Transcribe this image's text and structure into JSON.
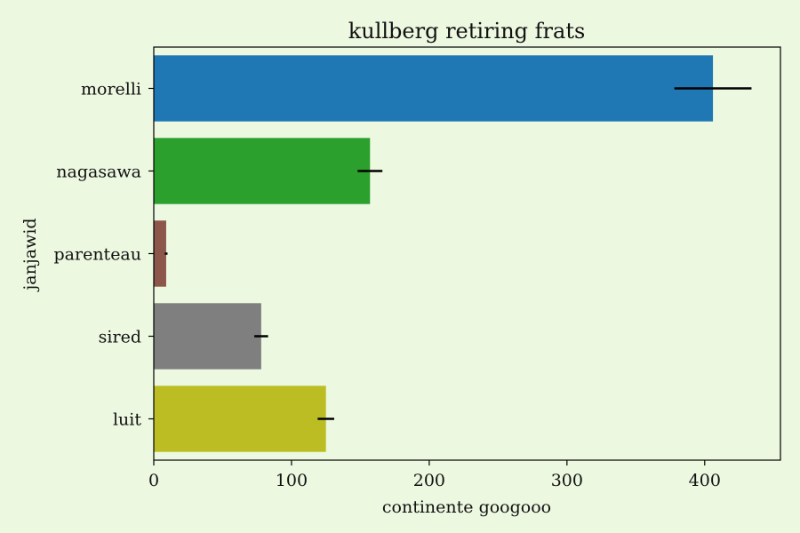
{
  "chart_data": {
    "type": "bar",
    "orientation": "horizontal",
    "title": "kullberg retiring frats",
    "xlabel": "continente googooo",
    "ylabel": "janjawid",
    "xlim": [
      0,
      455
    ],
    "xticks": [
      0,
      100,
      200,
      300,
      400
    ],
    "grid": false,
    "categories": [
      "morelli",
      "nagasawa",
      "parenteau",
      "sired",
      "luit"
    ],
    "values": [
      406,
      157,
      9,
      78,
      125
    ],
    "errors": [
      28,
      9,
      1,
      5,
      6
    ],
    "colors": [
      "#1f77b4",
      "#2ca02c",
      "#8c564b",
      "#7f7f7f",
      "#bcbd22"
    ],
    "background": "#edf8e1"
  }
}
